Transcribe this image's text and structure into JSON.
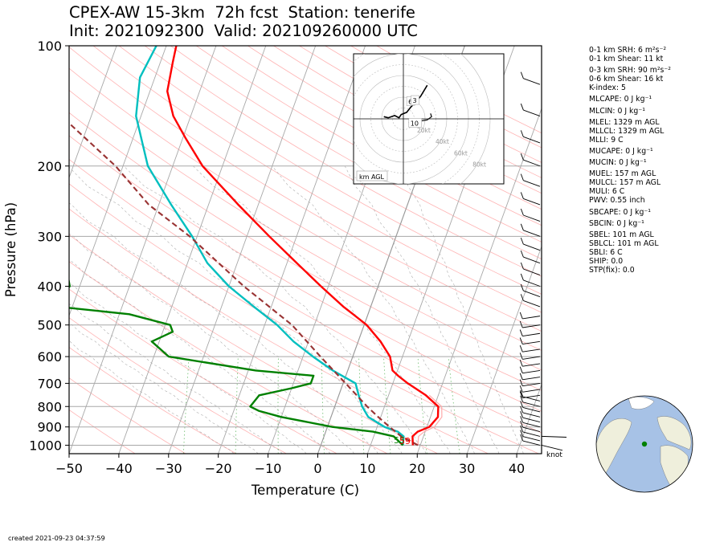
{
  "header": {
    "title_line1": "CPEX-AW 15-3km  72h fcst  Station: tenerife",
    "title_line2": "Init: 2021092300  Valid: 202109260000 UTC"
  },
  "chart_data": {
    "type": "line",
    "subtype": "skew-T log-P",
    "xlabel": "Temperature (C)",
    "ylabel": "Pressure (hPa)",
    "xlim": [
      -50,
      45
    ],
    "ylim_pressure": [
      1050,
      100
    ],
    "x_ticks": [
      "−50",
      "−40",
      "−30",
      "−20",
      "−10",
      "0",
      "10",
      "20",
      "30",
      "40"
    ],
    "x_tick_values": [
      -50,
      -40,
      -30,
      -20,
      -10,
      0,
      10,
      20,
      30,
      40
    ],
    "y_ticks": [
      "100",
      "200",
      "300",
      "400",
      "500",
      "600",
      "700",
      "800",
      "900",
      "1000"
    ],
    "y_tick_values": [
      100,
      200,
      300,
      400,
      500,
      600,
      700,
      800,
      900,
      1000
    ],
    "surface_labels": {
      "dewpoint": "55",
      "temperature": "59"
    },
    "series": [
      {
        "key": "temperature",
        "color": "#ff0000",
        "points": [
          [
            1000,
            18.5
          ],
          [
            950,
            17.8
          ],
          [
            925,
            18.5
          ],
          [
            900,
            20.5
          ],
          [
            850,
            21.5
          ],
          [
            800,
            20.8
          ],
          [
            750,
            17.5
          ],
          [
            700,
            13.0
          ],
          [
            670,
            10.5
          ],
          [
            650,
            9.0
          ],
          [
            600,
            7.5
          ],
          [
            550,
            4.5
          ],
          [
            500,
            0.5
          ],
          [
            470,
            -3.0
          ],
          [
            450,
            -5.5
          ],
          [
            400,
            -11.5
          ],
          [
            350,
            -18.0
          ],
          [
            300,
            -25.5
          ],
          [
            250,
            -34.0
          ],
          [
            200,
            -44.0
          ],
          [
            170,
            -49.5
          ],
          [
            150,
            -53.5
          ],
          [
            130,
            -56.5
          ],
          [
            110,
            -57.5
          ],
          [
            100,
            -58.0
          ]
        ]
      },
      {
        "key": "temp_trace_light",
        "color": "#ffaaaa",
        "points": [
          [
            1000,
            19.5
          ],
          [
            950,
            19.0
          ],
          [
            925,
            19.8
          ],
          [
            900,
            21.5
          ],
          [
            850,
            22.3
          ],
          [
            800,
            21.5
          ],
          [
            750,
            18.2
          ]
        ]
      },
      {
        "key": "wetbulb",
        "color": "#00bfbf",
        "points": [
          [
            1000,
            16.5
          ],
          [
            950,
            16.0
          ],
          [
            925,
            14.5
          ],
          [
            900,
            11.5
          ],
          [
            850,
            7.5
          ],
          [
            800,
            5.5
          ],
          [
            750,
            4.0
          ],
          [
            700,
            2.5
          ],
          [
            650,
            -3.0
          ],
          [
            600,
            -8.0
          ],
          [
            550,
            -13.0
          ],
          [
            500,
            -17.5
          ],
          [
            450,
            -23.5
          ],
          [
            400,
            -30.0
          ],
          [
            350,
            -36.0
          ],
          [
            300,
            -41.0
          ],
          [
            250,
            -47.5
          ],
          [
            200,
            -55.0
          ],
          [
            150,
            -61.0
          ],
          [
            120,
            -63.0
          ],
          [
            100,
            -62.0
          ]
        ]
      },
      {
        "key": "dewpoint",
        "color": "#008000",
        "points": [
          [
            1000,
            16.5
          ],
          [
            950,
            14.0
          ],
          [
            925,
            9.5
          ],
          [
            900,
            1.0
          ],
          [
            850,
            -10.0
          ],
          [
            820,
            -15.0
          ],
          [
            800,
            -17.0
          ],
          [
            750,
            -16.0
          ],
          [
            720,
            -10.0
          ],
          [
            700,
            -6.5
          ],
          [
            670,
            -6.5
          ],
          [
            650,
            -18.5
          ],
          [
            600,
            -37.0
          ],
          [
            550,
            -41.5
          ],
          [
            520,
            -38.0
          ],
          [
            500,
            -39.0
          ],
          [
            470,
            -48.0
          ],
          [
            450,
            -63.0
          ],
          [
            420,
            -63.0
          ],
          [
            400,
            -62.0
          ],
          [
            360,
            -64.0
          ],
          [
            330,
            -65.5
          ],
          [
            300,
            -68.5
          ],
          [
            260,
            -72.5
          ],
          [
            230,
            -75.5
          ],
          [
            210,
            -79.0
          ],
          [
            200,
            -81.0
          ],
          [
            180,
            -84.0
          ],
          [
            160,
            -84.5
          ],
          [
            130,
            -90.0
          ],
          [
            110,
            -95.0
          ],
          [
            100,
            -97.0
          ]
        ]
      },
      {
        "key": "parcel",
        "color": "#993333",
        "dashed": true,
        "points": [
          [
            1000,
            19.5
          ],
          [
            950,
            15.5
          ],
          [
            900,
            12.5
          ],
          [
            850,
            9.5
          ],
          [
            800,
            6.5
          ],
          [
            700,
            0.5
          ],
          [
            600,
            -6.5
          ],
          [
            500,
            -14.5
          ],
          [
            400,
            -27.0
          ],
          [
            300,
            -41.5
          ],
          [
            250,
            -52.0
          ],
          [
            200,
            -61.5
          ],
          [
            150,
            -76.0
          ],
          [
            120,
            -86.0
          ],
          [
            100,
            -95.0
          ]
        ]
      }
    ],
    "hodograph": {
      "unit_label": "km AGL",
      "ring_labels": [
        "10kt",
        "20kt",
        "40kt",
        "60kt",
        "80kt"
      ],
      "height_markers": [
        {
          "label": "6",
          "u": 6,
          "v": 16
        },
        {
          "label": "3",
          "u": 10,
          "v": 17
        },
        {
          "label": "10",
          "u": 8,
          "v": -4
        }
      ],
      "trace": [
        [
          -18,
          2
        ],
        [
          -14,
          1
        ],
        [
          -8,
          3
        ],
        [
          -4,
          1
        ],
        [
          -2,
          4
        ],
        [
          3,
          6
        ],
        [
          7,
          11
        ],
        [
          11,
          15
        ],
        [
          16,
          21
        ],
        [
          22,
          31
        ]
      ],
      "trace2": [
        [
          8,
          -4
        ],
        [
          12,
          -3
        ],
        [
          16,
          -2
        ],
        [
          22,
          -1
        ],
        [
          26,
          2
        ],
        [
          25,
          5
        ]
      ]
    },
    "wind_profile_label": "knot"
  },
  "parameters": [
    {
      "text": "0-1 km SRH: 6 m²s⁻²"
    },
    {
      "text": "0-1 km Shear: 11 kt"
    },
    {
      "text": "0-3 km SRH: 90 m²s⁻²",
      "gap": true
    },
    {
      "text": "0-6 km Shear: 16 kt"
    },
    {
      "text": "K-index: 5"
    },
    {
      "text": "MLCAPE: 0 J kg⁻¹",
      "gap": true
    },
    {
      "text": "MLCIN: 0 J kg⁻¹",
      "gap": true
    },
    {
      "text": "MLEL: 1329 m AGL",
      "gap": true
    },
    {
      "text": "MLLCL: 1329 m AGL"
    },
    {
      "text": "MLLI: 9 C"
    },
    {
      "text": "MUCAPE: 0 J kg⁻¹",
      "gap": true
    },
    {
      "text": "MUCIN: 0 J kg⁻¹",
      "gap": true
    },
    {
      "text": "MUEL: 157 m AGL",
      "gap": true
    },
    {
      "text": "MULCL: 157 m AGL"
    },
    {
      "text": "MULI: 6 C"
    },
    {
      "text": "PWV: 0.55 inch"
    },
    {
      "text": "SBCAPE: 0 J kg⁻¹",
      "gap": true
    },
    {
      "text": "SBCIN: 0 J kg⁻¹",
      "gap": true
    },
    {
      "text": "SBEL: 101 m AGL",
      "gap": true
    },
    {
      "text": "SBLCL: 101 m AGL"
    },
    {
      "text": "SBLI: 6 C"
    },
    {
      "text": "SHIP: 0.0"
    },
    {
      "text": "STP(fix): 0.0"
    }
  ],
  "globe": {
    "station_marker_color": "#008000",
    "ocean_color": "#a7c2e6",
    "land_color": "#efefdc"
  },
  "footer": {
    "created": "created 2021-09-23 04:37:59"
  }
}
